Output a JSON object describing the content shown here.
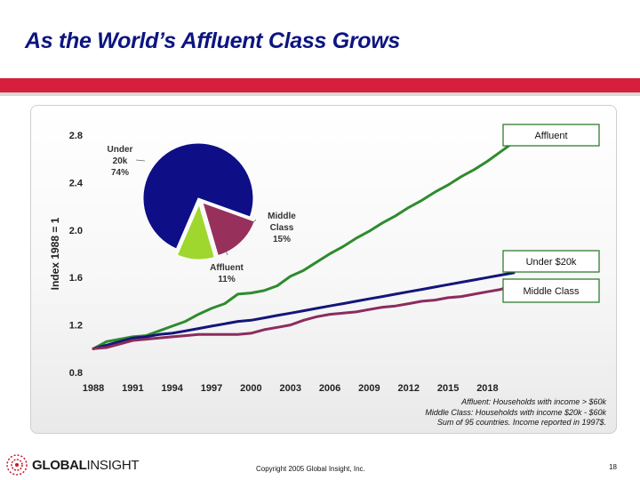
{
  "slide": {
    "title": "As the World’s Affluent Class Grows",
    "copyright": "Copyright 2005 Global Insight, Inc.",
    "page_number": "18",
    "logo": {
      "part1": "GLOBAL",
      "part2": "INSIGHT"
    },
    "notes": [
      "Affluent: Households with income > $60k",
      "Middle Class: Households with income $20k - $60k",
      "Sum of 95 countries.  Income reported in 1997$."
    ]
  },
  "colors": {
    "title": "#0d1580",
    "accent_bar": "#d61f3c",
    "affluent": "#2e8b2e",
    "under20k": "#14157a",
    "middle": "#8b2b5e",
    "pie_under": "#0e0f86",
    "pie_middle": "#98305c",
    "pie_affluent": "#9fd72e"
  },
  "chart_data": [
    {
      "type": "line",
      "ylabel": "Index 1988 = 1",
      "xlabel": "",
      "ylim": [
        0.8,
        2.8
      ],
      "y_ticks": [
        "0.8",
        "1.2",
        "1.6",
        "2.0",
        "2.4",
        "2.8"
      ],
      "x_ticks": [
        "1988",
        "1991",
        "1994",
        "1997",
        "2000",
        "2003",
        "2006",
        "2009",
        "2012",
        "2015",
        "2018"
      ],
      "x_range": [
        1988,
        2020
      ],
      "x": [
        1988,
        1989,
        1990,
        1991,
        1992,
        1993,
        1994,
        1995,
        1996,
        1997,
        1998,
        1999,
        2000,
        2001,
        2002,
        2003,
        2004,
        2005,
        2006,
        2007,
        2008,
        2009,
        2010,
        2011,
        2012,
        2013,
        2014,
        2015,
        2016,
        2017,
        2018,
        2019,
        2020
      ],
      "series": [
        {
          "name": "Affluent",
          "color_key": "affluent",
          "values": [
            1.0,
            1.06,
            1.08,
            1.1,
            1.11,
            1.15,
            1.19,
            1.23,
            1.29,
            1.34,
            1.38,
            1.46,
            1.47,
            1.49,
            1.53,
            1.61,
            1.66,
            1.73,
            1.8,
            1.86,
            1.93,
            1.99,
            2.06,
            2.12,
            2.19,
            2.25,
            2.32,
            2.38,
            2.45,
            2.51,
            2.58,
            2.66,
            2.74
          ]
        },
        {
          "name": "Under $20k",
          "color_key": "under20k",
          "values": [
            1.0,
            1.03,
            1.06,
            1.09,
            1.1,
            1.12,
            1.13,
            1.15,
            1.17,
            1.19,
            1.21,
            1.23,
            1.24,
            1.26,
            1.28,
            1.3,
            1.32,
            1.34,
            1.36,
            1.38,
            1.4,
            1.42,
            1.44,
            1.46,
            1.48,
            1.5,
            1.52,
            1.54,
            1.56,
            1.58,
            1.6,
            1.62,
            1.64
          ]
        },
        {
          "name": "Middle Class",
          "color_key": "middle",
          "values": [
            1.0,
            1.01,
            1.04,
            1.07,
            1.08,
            1.09,
            1.1,
            1.11,
            1.12,
            1.12,
            1.12,
            1.12,
            1.13,
            1.16,
            1.18,
            1.2,
            1.24,
            1.27,
            1.29,
            1.3,
            1.31,
            1.33,
            1.35,
            1.36,
            1.38,
            1.4,
            1.41,
            1.43,
            1.44,
            1.46,
            1.48,
            1.5,
            1.54
          ]
        }
      ],
      "callouts": [
        {
          "series": "Affluent",
          "label": "Affluent"
        },
        {
          "series": "Under $20k",
          "label": "Under $20k"
        },
        {
          "series": "Middle Class",
          "label": "Middle Class"
        }
      ]
    },
    {
      "type": "pie",
      "slices": [
        {
          "label_lines": [
            "Under",
            "20k",
            "74%"
          ],
          "value": 74,
          "color_key": "pie_under"
        },
        {
          "label_lines": [
            "Middle",
            "Class",
            "15%"
          ],
          "value": 15,
          "color_key": "pie_middle"
        },
        {
          "label_lines": [
            "Affluent",
            "11%"
          ],
          "value": 11,
          "color_key": "pie_affluent"
        }
      ]
    }
  ]
}
